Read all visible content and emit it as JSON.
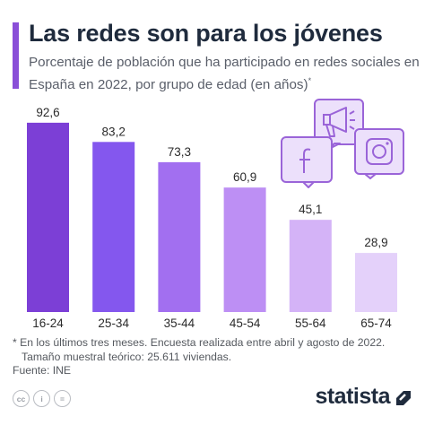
{
  "title": "Las redes son para los jóvenes",
  "subtitle": "Porcentaje de población que ha participado en redes sociales en España en 2022, por grupo de edad (en años)",
  "subtitle_mark": "*",
  "footnote": {
    "line1": "* En los últimos tres meses. Encuesta realizada entre abril y agosto de 2022.",
    "line2": "Tamaño muestral teórico: 25.611 viviendas."
  },
  "source": "Fuente: INE",
  "brand": "statista",
  "license_icons": [
    "cc-icon",
    "by-icon",
    "equals-icon"
  ],
  "license_glyphs": [
    "cc",
    "i",
    "="
  ],
  "social_icons": [
    "megaphone-icon",
    "facebook-icon",
    "instagram-icon"
  ],
  "colors": {
    "accent": "#8a4fd8",
    "bars": [
      "#7c3fd6",
      "#8457ee",
      "#a26ff0",
      "#bd8ff4",
      "#d4b3f7",
      "#e4d1fa"
    ],
    "icon_fill": "#ece0fb",
    "icon_stroke": "#9a64d8"
  },
  "chart_data": {
    "type": "bar",
    "categories": [
      "16-24",
      "25-34",
      "35-44",
      "45-54",
      "55-64",
      "65-74"
    ],
    "values": [
      92.6,
      83.2,
      73.3,
      60.9,
      45.1,
      28.9
    ],
    "value_labels": [
      "92,6",
      "83,2",
      "73,3",
      "60,9",
      "45,1",
      "28,9"
    ],
    "title": "Las redes son para los jóvenes",
    "xlabel": "",
    "ylabel": "",
    "ylim": [
      0,
      100
    ],
    "grid": false,
    "legend": "none"
  }
}
